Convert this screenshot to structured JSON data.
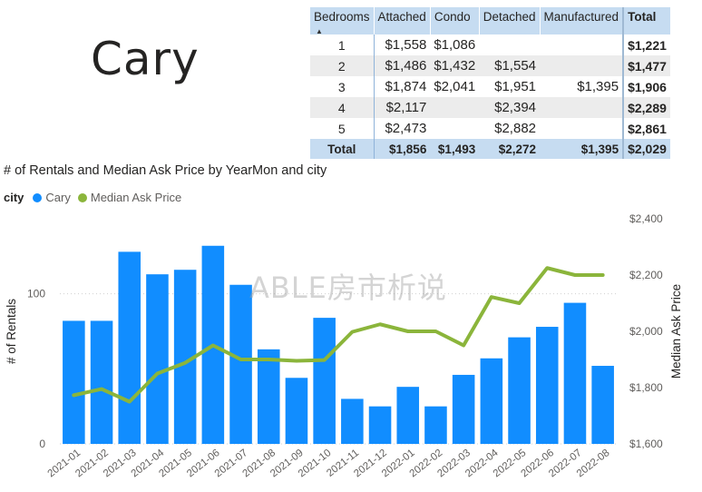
{
  "city": "Cary",
  "table": {
    "headers": [
      "Bedrooms",
      "Attached",
      "Condo",
      "Detached",
      "Manufactured",
      "Total"
    ],
    "rows": [
      {
        "bedrooms": "1",
        "attached": "$1,558",
        "condo": "$1,086",
        "detached": "",
        "manufactured": "",
        "total": "$1,221"
      },
      {
        "bedrooms": "2",
        "attached": "$1,486",
        "condo": "$1,432",
        "detached": "$1,554",
        "manufactured": "",
        "total": "$1,477"
      },
      {
        "bedrooms": "3",
        "attached": "$1,874",
        "condo": "$2,041",
        "detached": "$1,951",
        "manufactured": "$1,395",
        "total": "$1,906"
      },
      {
        "bedrooms": "4",
        "attached": "$2,117",
        "condo": "",
        "detached": "$2,394",
        "manufactured": "",
        "total": "$2,289"
      },
      {
        "bedrooms": "5",
        "attached": "$2,473",
        "condo": "",
        "detached": "$2,882",
        "manufactured": "",
        "total": "$2,861"
      }
    ],
    "total_row": {
      "bedrooms": "Total",
      "attached": "$1,856",
      "condo": "$1,493",
      "detached": "$2,272",
      "manufactured": "$1,395",
      "total": "$2,029"
    }
  },
  "watermark": "ABLE房市析说",
  "chart_data": {
    "type": "bar",
    "title": "# of Rentals and Median Ask Price by YearMon and city",
    "legend_title": "city",
    "legend_position": "top-left",
    "categories": [
      "2021-01",
      "2021-02",
      "2021-03",
      "2021-04",
      "2021-05",
      "2021-06",
      "2021-07",
      "2021-08",
      "2021-09",
      "2021-10",
      "2021-11",
      "2021-12",
      "2022-01",
      "2022-02",
      "2022-03",
      "2022-04",
      "2022-05",
      "2022-06",
      "2022-07",
      "2022-08"
    ],
    "series": [
      {
        "name": "Cary",
        "type": "bar",
        "axis": "left",
        "color": "#118dff",
        "values": [
          82,
          82,
          128,
          113,
          116,
          132,
          106,
          63,
          44,
          84,
          30,
          25,
          38,
          25,
          46,
          57,
          71,
          78,
          94,
          52
        ]
      },
      {
        "name": "Median Ask Price",
        "type": "line",
        "axis": "right",
        "color": "#8bb53b",
        "values": [
          1773,
          1795,
          1750,
          1850,
          1888,
          1950,
          1900,
          1900,
          1895,
          1898,
          1998,
          2025,
          2000,
          2000,
          1950,
          2122,
          2100,
          2225,
          2200,
          2200
        ]
      }
    ],
    "ylabel": "# of Rentals",
    "ylabel_right": "Median Ask Price",
    "ylim": [
      0,
      150
    ],
    "yticks": [
      "0",
      "100"
    ],
    "ylim_right": [
      1600,
      2400
    ],
    "yticks_right": [
      "$1,600",
      "$1,800",
      "$2,000",
      "$2,200",
      "$2,400"
    ],
    "grid": true
  }
}
